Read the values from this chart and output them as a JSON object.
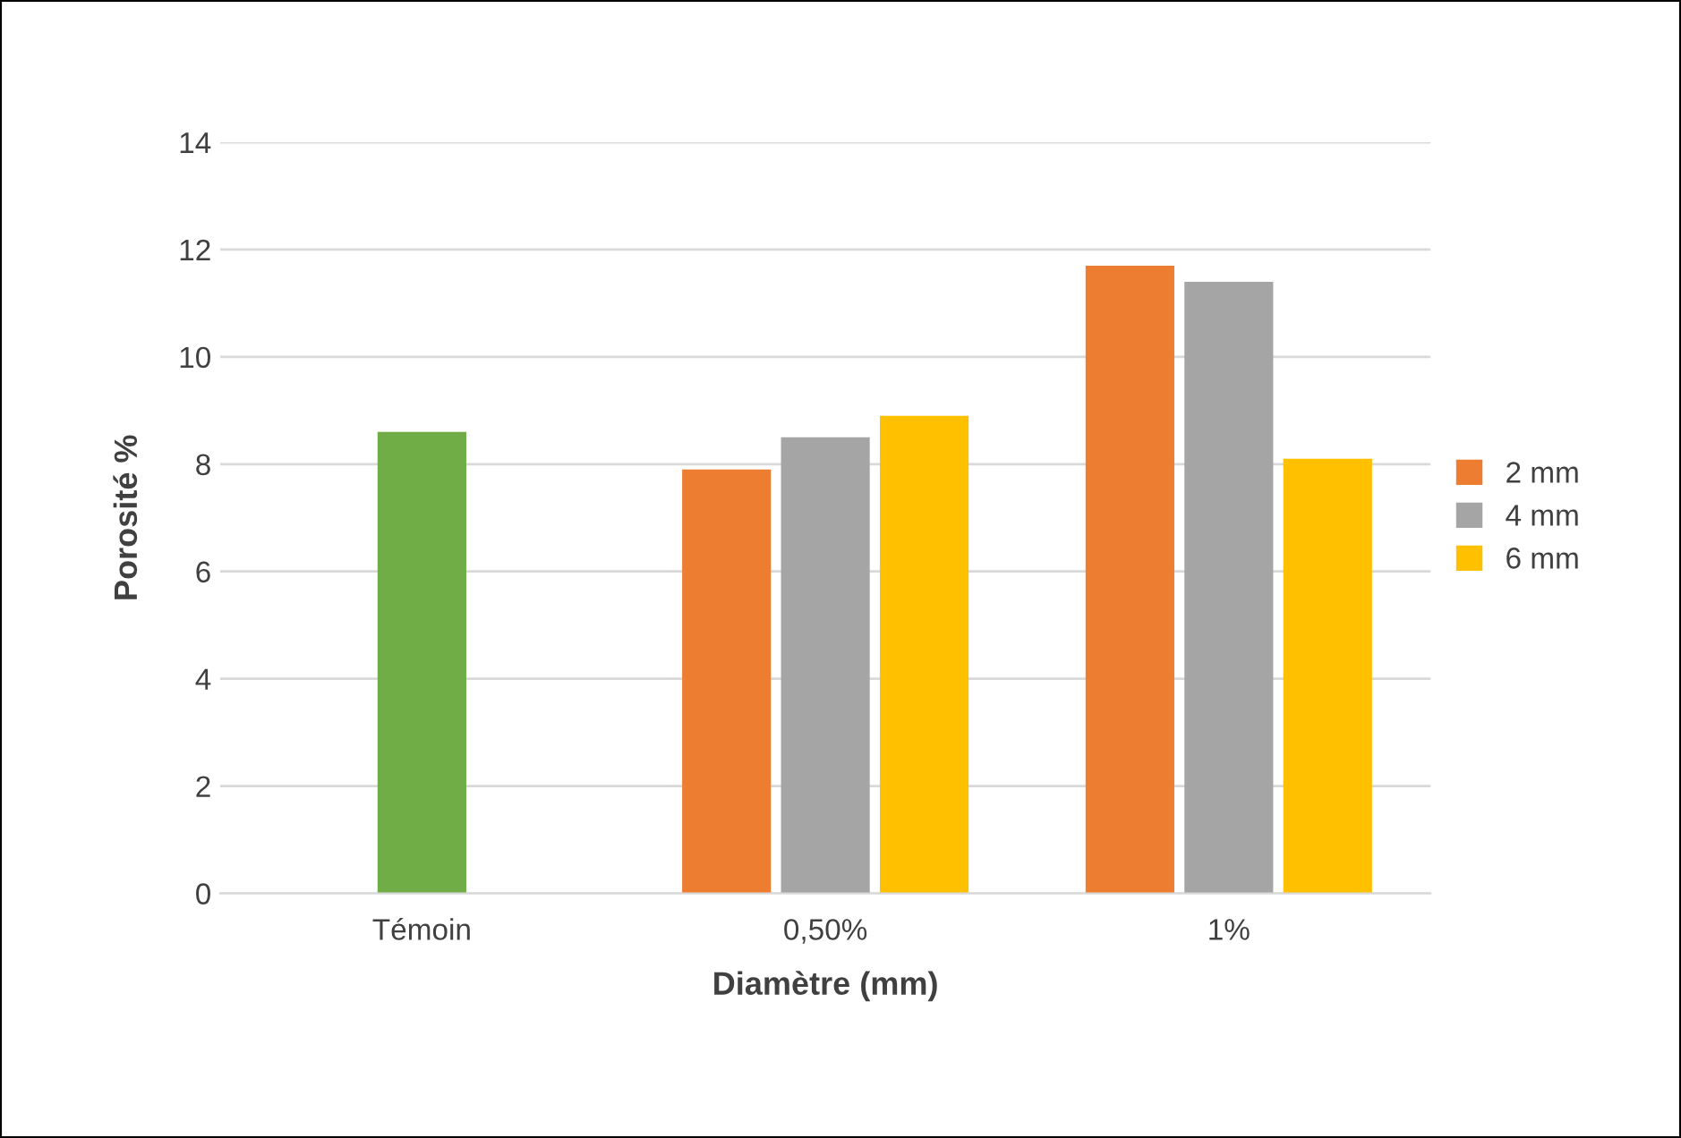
{
  "chart_data": {
    "type": "bar",
    "xlabel": "Diamètre (mm)",
    "ylabel": "Porosité %",
    "categories": [
      "Témoin",
      "0,50%",
      "1%"
    ],
    "series": [
      {
        "name": "2 mm",
        "color": "#ed7d31",
        "values": [
          null,
          7.9,
          11.7
        ]
      },
      {
        "name": "4 mm",
        "color": "#a5a5a5",
        "colors": [
          "#70ad47",
          "#a5a5a5",
          "#a5a5a5"
        ],
        "values": [
          8.6,
          8.5,
          11.4
        ]
      },
      {
        "name": "6 mm",
        "color": "#ffc000",
        "values": [
          null,
          8.9,
          8.1
        ]
      }
    ],
    "ylim": [
      0,
      14
    ],
    "yticks": [
      0,
      2,
      4,
      6,
      8,
      10,
      12,
      14
    ],
    "grid": "y",
    "legend": "right"
  }
}
